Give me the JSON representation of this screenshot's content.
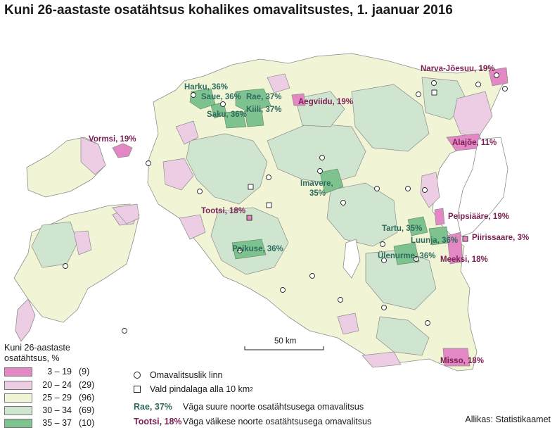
{
  "title": "Kuni 26-aastaste osatähtsus kohalikes omavalitsustes, 1. jaanuar 2016",
  "legend": {
    "title_line1": "Kuni 26-aastaste",
    "title_line2": "osatähtsus, %",
    "classes": [
      {
        "range": "3 – 19",
        "count": "(9)",
        "color": "#e388c4"
      },
      {
        "range": "20 – 24",
        "count": "(29)",
        "color": "#eccde3"
      },
      {
        "range": "25 – 29",
        "count": "(96)",
        "color": "#f1f5d6"
      },
      {
        "range": "30 – 34",
        "count": "(69)",
        "color": "#cfe5cf"
      },
      {
        "range": "35 – 37",
        "count": "(10)",
        "color": "#7dc28f"
      }
    ],
    "symbols": {
      "city": "Omavalitsuslik linn",
      "small_parish": "Vald pindalaga alla 10 km",
      "small_parish_sup": "2"
    },
    "examples": {
      "high_tag": "Rae, 37%",
      "high_text": "Väga suure noorte osatähtsusega omavalitsus",
      "low_tag": "Tootsi, 18%",
      "low_text": "Väga väikese noorte osatähtsusega omavalitsus"
    }
  },
  "scale_bar": "50 km",
  "source": "Allikas: Statistikaamet",
  "map_labels": {
    "harku": "Harku, 36%",
    "saue": "Saue, 36%",
    "rae": "Rae, 37%",
    "saku": "Saku, 36%",
    "kiili": "Kiili, 37%",
    "aegviidu": "Aegviidu, 19%",
    "narva_joesuu": "Narva-Jõesuu, 19%",
    "vormsi": "Vormsi, 19%",
    "alajoe": "Alajõe, 11%",
    "imavere_1": "Imavere,",
    "imavere_2": "35%",
    "tootsi": "Tootsi, 18%",
    "peipsiaare": "Peipsiääre, 19%",
    "piirissaare": "Piirissaare, 3%",
    "tartu": "Tartu, 35%",
    "luunja": "Luunja, 36%",
    "paikuse": "Paikuse, 36%",
    "ulenurme": "Ülenurme, 36%",
    "meeksi": "Meeksi, 18%",
    "misso": "Misso, 18%"
  },
  "colors": {
    "high_label": "#2e6b5e",
    "low_label": "#7a1f52",
    "lake": "#ffffff",
    "border": "#8c8c8c"
  }
}
